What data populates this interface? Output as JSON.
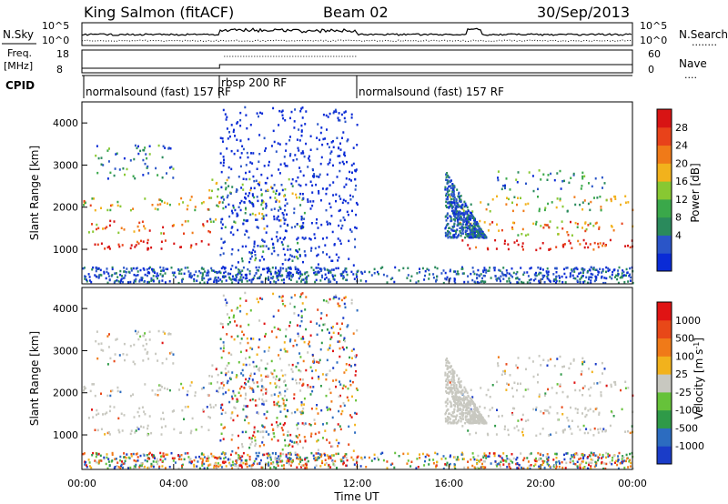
{
  "header": {
    "station": "King Salmon (fitACF)",
    "beam": "Beam 02",
    "date": "30/Sep/2013"
  },
  "panels": {
    "nsky_label": "N.Sky",
    "nsearch_label": "N.Search",
    "nsearch_dots": "........",
    "freq_label": "Freq.",
    "freq_unit": "[MHz]",
    "nave_label": "Nave",
    "nave_dots": "....",
    "cpid_label": "CPID",
    "noise_ticks": [
      "10^5",
      "10^0"
    ],
    "noise_ticks_right": [
      "10^5",
      "10^0"
    ],
    "freq_ticks": [
      "18",
      "8"
    ],
    "nave_ticks": [
      "60",
      "0"
    ]
  },
  "cpid": [
    {
      "label": "normalsound (fast) 157 RF",
      "start": "00:00",
      "end": "06:00"
    },
    {
      "label": "rbsp 200 RF",
      "start": "06:00",
      "end": "12:00"
    },
    {
      "label": "normalsound (fast) 157 RF",
      "start": "12:00",
      "end": "24:00"
    }
  ],
  "x_axis": {
    "label": "Time UT",
    "ticks": [
      "00:00",
      "04:00",
      "08:00",
      "12:00",
      "16:00",
      "20:00",
      "00:00"
    ],
    "range_hours": [
      0,
      24
    ]
  },
  "y_axis": {
    "label": "Slant Range [km]",
    "ticks": [
      "1000",
      "2000",
      "3000",
      "4000"
    ],
    "range_km": [
      180,
      4500
    ]
  },
  "power_scale": {
    "label": "Power [dB]",
    "ticks": [
      "28",
      "24",
      "20",
      "16",
      "12",
      "8",
      "4"
    ],
    "colors": [
      "#0a2bd6",
      "#2a55c8",
      "#2a8a5c",
      "#3aa84a",
      "#88c832",
      "#f2b21c",
      "#f07a18",
      "#e8421a",
      "#d81414"
    ]
  },
  "velocity_scale": {
    "label": "Velocity [m s",
    "label_sup": "-1",
    "label_end": "]",
    "ticks": [
      "1000",
      "500",
      "100",
      "25",
      "-25",
      "-100",
      "-500",
      "-1000"
    ],
    "colors": [
      "#1a3cc8",
      "#2c6cc0",
      "#2f9a48",
      "#66c23a",
      "#c8c8c0",
      "#f2b21c",
      "#f07a18",
      "#e84818",
      "#e01414"
    ]
  },
  "chart_data": {
    "type": "heatmap",
    "x_unit": "hours UT",
    "y_unit": "km",
    "bands": [
      {
        "t0": 0.0,
        "t1": 5.5,
        "r0": 1020,
        "r1": 1250,
        "level": 0.95
      },
      {
        "t0": 0.2,
        "t1": 5.8,
        "r0": 1400,
        "r1": 1700,
        "level": 0.7
      },
      {
        "t0": 0.0,
        "t1": 6.0,
        "r0": 1950,
        "r1": 2300,
        "level": 0.6
      },
      {
        "t0": 0.5,
        "t1": 4.0,
        "r0": 2700,
        "r1": 3500,
        "level": 0.3
      },
      {
        "t0": 5.5,
        "t1": 9.8,
        "r0": 1500,
        "r1": 2700,
        "level": 0.4
      },
      {
        "t0": 6.5,
        "t1": 9.5,
        "r0": 700,
        "r1": 1200,
        "level": 0.3
      },
      {
        "t0": 16.3,
        "t1": 24.0,
        "r0": 1000,
        "r1": 1250,
        "level": 0.95
      },
      {
        "t0": 16.0,
        "t1": 24.0,
        "r0": 1350,
        "r1": 1700,
        "level": 0.65
      },
      {
        "t0": 16.0,
        "t1": 24.0,
        "r0": 1900,
        "r1": 2300,
        "level": 0.5
      },
      {
        "t0": 18.0,
        "t1": 23.0,
        "r0": 2400,
        "r1": 2900,
        "level": 0.25
      }
    ]
  }
}
